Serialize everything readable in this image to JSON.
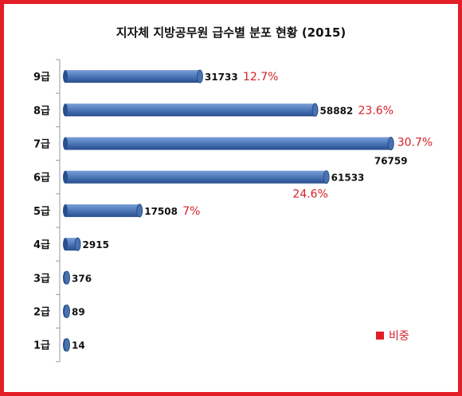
{
  "chart_data": {
    "type": "bar",
    "orientation": "horizontal",
    "title": "지자체 지방공무원 급수별 분포 현황 (2015)",
    "categories": [
      "9급",
      "8급",
      "7급",
      "6급",
      "5급",
      "4급",
      "3급",
      "2급",
      "1급"
    ],
    "values": [
      31733,
      58882,
      76759,
      61533,
      17508,
      2915,
      376,
      89,
      14
    ],
    "shares": [
      "12.7%",
      "23.6%",
      "30.7%",
      "24.6%",
      "7%",
      null,
      null,
      null,
      null
    ],
    "xlim": [
      0,
      78500
    ],
    "grid": false,
    "legend": {
      "label": "비중",
      "position": "bottom-right"
    },
    "colors": {
      "bar": "#4a72b0",
      "bar_dark": "#284f8c",
      "share": "#d42126",
      "frame": "#e41e26"
    }
  }
}
